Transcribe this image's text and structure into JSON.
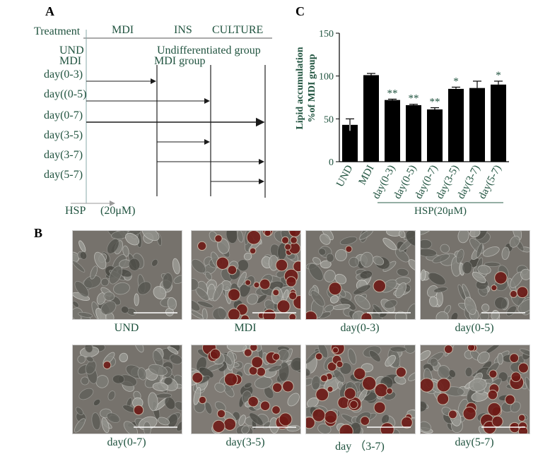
{
  "panel_a": {
    "letter": "A",
    "headers": {
      "treatment": "Treatment",
      "mdi": "MDI",
      "ins": "INS",
      "culture": "CULTURE"
    },
    "und_label": "UND",
    "mdi_label": "MDI",
    "und_group": "Undifferentiated group",
    "mdi_group": "MDI group",
    "rows": [
      {
        "label": "day(0-3)",
        "start_day": 0,
        "end_day": 3
      },
      {
        "label": "day((0-5)",
        "start_day": 0,
        "end_day": 5
      },
      {
        "label": "day(0-7)",
        "start_day": 0,
        "end_day": 7
      },
      {
        "label": "day(3-5)",
        "start_day": 3,
        "end_day": 5
      },
      {
        "label": "day(3-7)",
        "start_day": 3,
        "end_day": 7
      },
      {
        "label": "day(5-7)",
        "start_day": 5,
        "end_day": 7
      }
    ],
    "hsp_label": "HSP",
    "hsp_dose": "(20μM)"
  },
  "panel_b": {
    "letter": "B",
    "images": [
      {
        "caption": "UND",
        "stain": 0.0
      },
      {
        "caption": "MDI",
        "stain": 1.0
      },
      {
        "caption": "day(0-3)",
        "stain": 0.15
      },
      {
        "caption": "day(0-5)",
        "stain": 0.12
      },
      {
        "caption": "day(0-7)",
        "stain": 0.05
      },
      {
        "caption": "day(3-5)",
        "stain": 0.7
      },
      {
        "caption": "day  （3-7)",
        "stain": 0.85
      },
      {
        "caption": "day(5-7)",
        "stain": 0.8
      }
    ]
  },
  "panel_c": {
    "letter": "C",
    "group_label": "HSP(20μM)"
  },
  "chart_data": {
    "type": "bar",
    "title": "",
    "ylabel": "Lipid accumulation\n%of MDI group",
    "ylabel_lines": [
      "Lipid accumulation",
      "%of MDI group"
    ],
    "xlabel": "",
    "ylim": [
      0,
      150
    ],
    "yticks": [
      0,
      50,
      100,
      150
    ],
    "categories": [
      "UND",
      "MDI",
      "day(0-3)",
      "day(0-5)",
      "day(0-7)",
      "day(3-5)",
      "day(3-7)",
      "day(5-7)"
    ],
    "values": [
      43,
      101,
      72,
      66,
      61,
      85,
      86,
      90
    ],
    "errors": [
      7,
      2,
      1,
      1,
      2,
      2,
      8,
      4
    ],
    "significance": [
      "",
      "",
      "**",
      "**",
      "**",
      "*",
      "",
      "*"
    ],
    "bar_color": "#000000",
    "grid": false
  }
}
